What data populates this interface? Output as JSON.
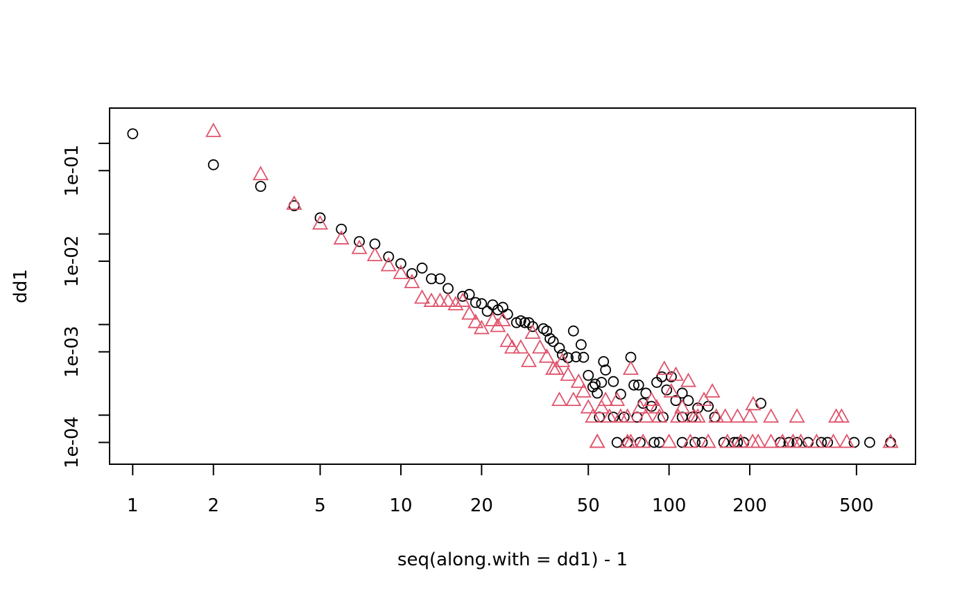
{
  "chart_data": {
    "type": "scatter",
    "title": "",
    "xlabel": "seq(along.with = dd1) - 1",
    "ylabel": "dd1",
    "xscale": "log",
    "yscale": "log",
    "xlim": [
      0.82,
      830
    ],
    "ylim": [
      5.75e-05,
      0.49
    ],
    "grid": false,
    "legend": "none",
    "xticks": [
      {
        "value": 1,
        "label": "1"
      },
      {
        "value": 2,
        "label": "2"
      },
      {
        "value": 5,
        "label": "5"
      },
      {
        "value": 10,
        "label": "10"
      },
      {
        "value": 20,
        "label": "20"
      },
      {
        "value": 50,
        "label": "50"
      },
      {
        "value": 100,
        "label": "100"
      },
      {
        "value": 200,
        "label": "200"
      },
      {
        "value": 500,
        "label": "500"
      }
    ],
    "yticks": [
      {
        "value": 0.0001,
        "label": "1e-04"
      },
      {
        "value": 0.0002,
        "label": ""
      },
      {
        "value": 0.001,
        "label": "1e-03"
      },
      {
        "value": 0.002,
        "label": ""
      },
      {
        "value": 0.01,
        "label": "1e-02"
      },
      {
        "value": 0.02,
        "label": ""
      },
      {
        "value": 0.1,
        "label": "1e-01"
      },
      {
        "value": 0.2,
        "label": ""
      }
    ],
    "series": [
      {
        "marker": "circle",
        "color": "#000000",
        "points": [
          [
            1,
            0.255
          ],
          [
            2,
            0.116
          ],
          [
            3,
            0.067
          ],
          [
            4,
            0.041
          ],
          [
            5,
            0.0301
          ],
          [
            6,
            0.0226
          ],
          [
            7,
            0.0165
          ],
          [
            8,
            0.0155
          ],
          [
            9,
            0.0112
          ],
          [
            10,
            0.0094
          ],
          [
            11,
            0.0073
          ],
          [
            12,
            0.0084
          ],
          [
            13,
            0.0064
          ],
          [
            14,
            0.0064
          ],
          [
            15,
            0.005
          ],
          [
            17,
            0.0041
          ],
          [
            18,
            0.0043
          ],
          [
            19,
            0.0035
          ],
          [
            20,
            0.0034
          ],
          [
            21,
            0.0028
          ],
          [
            22,
            0.0033
          ],
          [
            23,
            0.0029
          ],
          [
            24,
            0.0031
          ],
          [
            25,
            0.0026
          ],
          [
            27,
            0.0021
          ],
          [
            28,
            0.0022
          ],
          [
            29,
            0.0021
          ],
          [
            30,
            0.0021
          ],
          [
            31,
            0.0019
          ],
          [
            34,
            0.0018
          ],
          [
            35,
            0.0017
          ],
          [
            36,
            0.0014
          ],
          [
            37,
            0.0013
          ],
          [
            39,
            0.0011
          ],
          [
            40,
            0.00093
          ],
          [
            42,
            0.00086
          ],
          [
            44,
            0.0017
          ],
          [
            45,
            0.00088
          ],
          [
            47,
            0.0012
          ],
          [
            48,
            0.00087
          ],
          [
            50,
            0.00055
          ],
          [
            52,
            0.00041
          ],
          [
            53,
            0.00044
          ],
          [
            54,
            0.00035
          ],
          [
            55,
            0.00019
          ],
          [
            56,
            0.00046
          ],
          [
            57,
            0.00078
          ],
          [
            58,
            0.00063
          ],
          [
            62,
            0.00047
          ],
          [
            64,
            0.0001
          ],
          [
            66,
            0.00034
          ],
          [
            68,
            0.00019
          ],
          [
            72,
            0.00087
          ],
          [
            74,
            0.00043
          ],
          [
            77,
            0.00043
          ],
          [
            80,
            0.00027
          ],
          [
            82,
            0.00035
          ],
          [
            86,
            0.00025
          ],
          [
            90,
            0.00046
          ],
          [
            94,
            0.00053
          ],
          [
            98,
            0.00038
          ],
          [
            102,
            0.00053
          ],
          [
            106,
            0.00029
          ],
          [
            112,
            0.00035
          ],
          [
            118,
            0.00029
          ],
          [
            128,
            0.00024
          ],
          [
            133,
            0.0001
          ],
          [
            140,
            0.00025
          ],
          [
            148,
            0.00019
          ],
          [
            220,
            0.00027
          ],
          [
            300,
            0.0001
          ],
          [
            390,
            0.0001
          ],
          [
            560,
            0.0001
          ],
          [
            670,
            0.0001
          ],
          [
            70,
            0.0001
          ],
          [
            78,
            0.0001
          ],
          [
            88,
            0.0001
          ],
          [
            92,
            0.0001
          ],
          [
            112,
            0.0001
          ],
          [
            125,
            0.0001
          ],
          [
            160,
            0.0001
          ],
          [
            175,
            0.0001
          ],
          [
            180,
            0.0001
          ],
          [
            190,
            0.0001
          ],
          [
            260,
            0.0001
          ],
          [
            280,
            0.0001
          ],
          [
            330,
            0.0001
          ],
          [
            370,
            0.0001
          ],
          [
            490,
            0.0001
          ],
          [
            62,
            0.00019
          ],
          [
            76,
            0.00019
          ],
          [
            95,
            0.00019
          ],
          [
            112,
            0.00019
          ],
          [
            122,
            0.00019
          ]
        ]
      },
      {
        "marker": "triangle",
        "color": "#DF536B",
        "points": [
          [
            2,
            0.27
          ],
          [
            3,
            0.09
          ],
          [
            4,
            0.0425
          ],
          [
            5,
            0.0257
          ],
          [
            6,
            0.0176
          ],
          [
            7,
            0.0138
          ],
          [
            8,
            0.0115
          ],
          [
            9,
            0.0089
          ],
          [
            10,
            0.0073
          ],
          [
            11,
            0.0058
          ],
          [
            12,
            0.0039
          ],
          [
            13,
            0.0036
          ],
          [
            14,
            0.0036
          ],
          [
            15,
            0.0036
          ],
          [
            16,
            0.0033
          ],
          [
            17,
            0.0036
          ],
          [
            18,
            0.0026
          ],
          [
            19,
            0.0021
          ],
          [
            20,
            0.0018
          ],
          [
            22,
            0.0022
          ],
          [
            23,
            0.0019
          ],
          [
            24,
            0.0022
          ],
          [
            25,
            0.0013
          ],
          [
            26,
            0.0011
          ],
          [
            28,
            0.0011
          ],
          [
            30,
            0.00078
          ],
          [
            31,
            0.0016
          ],
          [
            33,
            0.0011
          ],
          [
            35,
            0.00087
          ],
          [
            37,
            0.00064
          ],
          [
            38,
            0.00064
          ],
          [
            39,
            0.00029
          ],
          [
            40,
            0.00078
          ],
          [
            42,
            0.00055
          ],
          [
            44,
            0.00029
          ],
          [
            46,
            0.00046
          ],
          [
            48,
            0.00036
          ],
          [
            50,
            0.00024
          ],
          [
            52,
            0.00019
          ],
          [
            54,
            0.0001
          ],
          [
            56,
            0.00024
          ],
          [
            58,
            0.00029
          ],
          [
            60,
            0.00019
          ],
          [
            64,
            0.00029
          ],
          [
            66,
            0.00019
          ],
          [
            70,
            0.0001
          ],
          [
            72,
            0.00064
          ],
          [
            78,
            0.00024
          ],
          [
            82,
            0.00019
          ],
          [
            86,
            0.00029
          ],
          [
            90,
            0.00024
          ],
          [
            96,
            0.00064
          ],
          [
            102,
            0.00036
          ],
          [
            106,
            0.00055
          ],
          [
            112,
            0.00024
          ],
          [
            118,
            0.00047
          ],
          [
            124,
            0.00019
          ],
          [
            135,
            0.00029
          ],
          [
            145,
            0.00036
          ],
          [
            150,
            0.00019
          ],
          [
            180,
            0.00019
          ],
          [
            200,
            0.00019
          ],
          [
            206,
            0.00026
          ],
          [
            240,
            0.00019
          ],
          [
            300,
            0.00019
          ],
          [
            420,
            0.00019
          ],
          [
            440,
            0.00019
          ],
          [
            54,
            0.0001
          ],
          [
            72,
            0.0001
          ],
          [
            80,
            0.0001
          ],
          [
            100,
            0.0001
          ],
          [
            120,
            0.0001
          ],
          [
            140,
            0.0001
          ],
          [
            165,
            0.0001
          ],
          [
            185,
            0.0001
          ],
          [
            205,
            0.0001
          ],
          [
            215,
            0.0001
          ],
          [
            240,
            0.0001
          ],
          [
            265,
            0.0001
          ],
          [
            290,
            0.0001
          ],
          [
            310,
            0.0001
          ],
          [
            355,
            0.0001
          ],
          [
            410,
            0.0001
          ],
          [
            460,
            0.0001
          ],
          [
            670,
            0.0001
          ],
          [
            70,
            0.00019
          ],
          [
            92,
            0.00019
          ],
          [
            108,
            0.00019
          ],
          [
            128,
            0.00019
          ],
          [
            162,
            0.00019
          ]
        ]
      }
    ]
  }
}
